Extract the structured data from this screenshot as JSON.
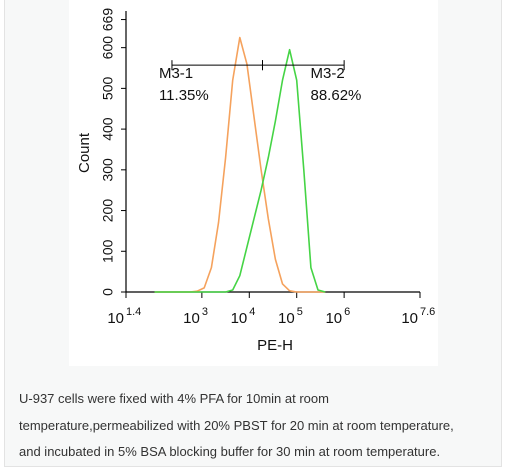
{
  "chart_data": {
    "type": "histogram-overlay",
    "xlabel": "PE-H",
    "ylabel": "Count",
    "log_x": true,
    "xlim": [
      25.12,
      39810717
    ],
    "xticks": [
      {
        "value": 25.12,
        "label": "10",
        "sup": "1.4"
      },
      {
        "value": 1000,
        "label": "10",
        "sup": "3"
      },
      {
        "value": 10000,
        "label": "10",
        "sup": "4"
      },
      {
        "value": 100000,
        "label": "10",
        "sup": "5"
      },
      {
        "value": 1000000,
        "label": "10",
        "sup": "6"
      },
      {
        "value": 39810717,
        "label": "10",
        "sup": "7.6"
      }
    ],
    "ylim": [
      0,
      690
    ],
    "yticks": [
      0,
      100,
      200,
      300,
      400,
      500,
      600,
      669
    ],
    "x": [
      100,
      141,
      200,
      282,
      398,
      562,
      794,
      1122,
      1585,
      2239,
      3162,
      4467,
      6310,
      8913,
      12589,
      17783,
      25119,
      35481,
      50119,
      70795,
      100000,
      141254,
      199526,
      281838,
      398107
    ],
    "series": [
      {
        "color": "#f5a25d",
        "values": [
          0,
          0,
          0,
          0,
          0,
          0,
          2,
          10,
          60,
          170,
          330,
          520,
          625,
          560,
          430,
          300,
          180,
          80,
          20,
          3,
          0,
          0,
          0,
          0,
          0
        ]
      },
      {
        "color": "#45d445",
        "values": [
          0,
          0,
          0,
          0,
          0,
          0,
          0,
          0,
          0,
          0,
          0,
          5,
          40,
          110,
          180,
          250,
          330,
          420,
          520,
          595,
          520,
          300,
          60,
          5,
          0
        ]
      }
    ],
    "gates": [
      {
        "name": "M3-1",
        "percent": "11.35%",
        "range": [
          234,
          19000
        ],
        "level": 557
      },
      {
        "name": "M3-2",
        "percent": "88.62%",
        "range": [
          19000,
          1000000
        ],
        "level": 557
      }
    ]
  },
  "caption": {
    "lines": [
      "U-937 cells were fixed with 4% PFA for 10min at room",
      "temperature,permeabilized with 20% PBST for 20 min at room temperature,",
      "and incubated in 5% BSA blocking buffer for 30 min at room temperature."
    ]
  }
}
